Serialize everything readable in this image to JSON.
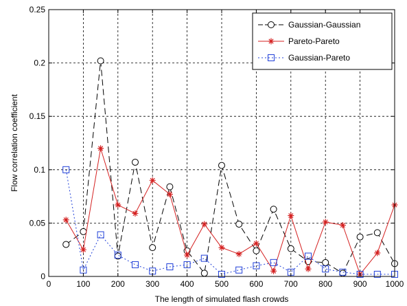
{
  "chart_data": {
    "type": "line",
    "xlabel": "The length of simulated flash crowds",
    "ylabel": "Flow correlation coefficient",
    "xlim": [
      0,
      1000
    ],
    "ylim": [
      0,
      0.25
    ],
    "xticks": [
      0,
      100,
      200,
      300,
      400,
      500,
      600,
      700,
      800,
      900,
      1000
    ],
    "yticks": [
      0,
      0.05,
      0.1,
      0.15,
      0.2,
      0.25
    ],
    "xtick_labels": [
      "0",
      "100",
      "200",
      "300",
      "400",
      "500",
      "600",
      "700",
      "800",
      "900",
      "1000"
    ],
    "ytick_labels": [
      "0",
      "0.05",
      "0.1",
      "0.15",
      "0.2",
      "0.25"
    ],
    "grid": true,
    "legend_position": "top-right",
    "x": [
      50,
      100,
      150,
      200,
      250,
      300,
      350,
      400,
      450,
      500,
      550,
      600,
      650,
      700,
      750,
      800,
      850,
      900,
      950,
      1000
    ],
    "series": [
      {
        "name": "Gaussian-Gaussian",
        "color": "#000000",
        "line_style": "dashed",
        "marker": "circle",
        "values": [
          0.03,
          0.042,
          0.202,
          0.019,
          0.107,
          0.027,
          0.084,
          0.024,
          0.003,
          0.104,
          0.049,
          0.024,
          0.063,
          0.026,
          0.014,
          0.013,
          0.003,
          0.037,
          0.041,
          0.012
        ]
      },
      {
        "name": "Pareto-Pareto",
        "color": "#d42020",
        "line_style": "solid",
        "marker": "star",
        "values": [
          0.053,
          0.025,
          0.12,
          0.067,
          0.059,
          0.09,
          0.077,
          0.02,
          0.049,
          0.027,
          0.021,
          0.031,
          0.005,
          0.057,
          0.007,
          0.051,
          0.048,
          0.002,
          0.022,
          0.067
        ]
      },
      {
        "name": "Gaussian-Pareto",
        "color": "#1f3fd8",
        "line_style": "dotted",
        "marker": "square",
        "values": [
          0.1,
          0.006,
          0.039,
          0.02,
          0.011,
          0.005,
          0.009,
          0.011,
          0.017,
          0.002,
          0.006,
          0.01,
          0.013,
          0.004,
          0.019,
          0.007,
          0.004,
          0.002,
          0.002,
          0.002
        ]
      }
    ]
  }
}
